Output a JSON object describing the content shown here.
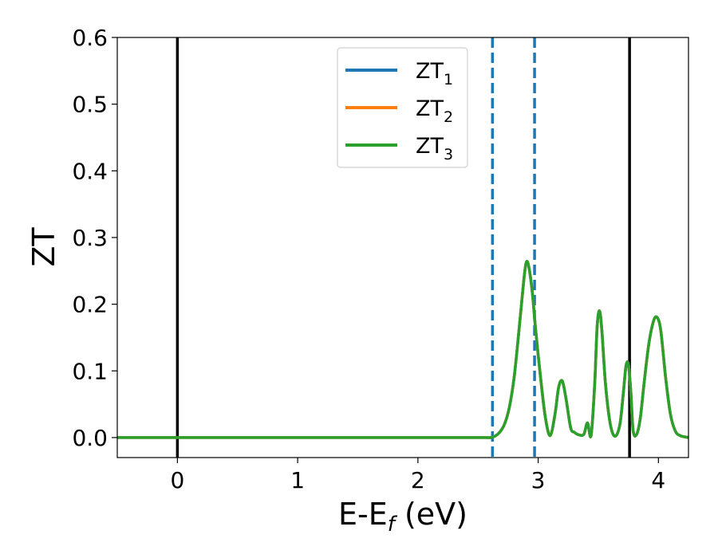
{
  "chart_data": {
    "type": "line",
    "xlabel": {
      "main": "E-E",
      "sub": "f",
      "tail": " (eV)"
    },
    "ylabel": "ZT",
    "xlim": [
      -0.5,
      4.25
    ],
    "ylim": [
      -0.03,
      0.6
    ],
    "xticks": [
      0,
      1,
      2,
      3,
      4
    ],
    "xtick_labels": [
      "0",
      "1",
      "2",
      "3",
      "4"
    ],
    "yticks": [
      0.0,
      0.1,
      0.2,
      0.3,
      0.4,
      0.5,
      0.6
    ],
    "ytick_labels": [
      "0.0",
      "0.1",
      "0.2",
      "0.3",
      "0.4",
      "0.5",
      "0.6"
    ],
    "grid": false,
    "legend_position": "top-center",
    "series": [
      {
        "name": "ZT",
        "sub": "1",
        "color": "#1f77b4"
      },
      {
        "name": "ZT",
        "sub": "2",
        "color": "#ff7f0e"
      },
      {
        "name": "ZT",
        "sub": "3",
        "color": "#2ca02c"
      }
    ],
    "curve": {
      "x": [
        -0.5,
        0.0,
        1.0,
        2.0,
        2.55,
        2.6,
        2.64,
        2.68,
        2.72,
        2.76,
        2.8,
        2.84,
        2.88,
        2.9,
        2.92,
        2.95,
        2.98,
        3.02,
        3.06,
        3.1,
        3.14,
        3.17,
        3.2,
        3.23,
        3.27,
        3.3,
        3.34,
        3.38,
        3.41,
        3.44,
        3.47,
        3.49,
        3.51,
        3.53,
        3.56,
        3.6,
        3.64,
        3.68,
        3.71,
        3.73,
        3.75,
        3.77,
        3.79,
        3.82,
        3.85,
        3.88,
        3.92,
        3.96,
        3.99,
        4.02,
        4.06,
        4.1,
        4.14,
        4.18,
        4.25
      ],
      "y": [
        0.0,
        0.0,
        0.0,
        0.0,
        0.0,
        0.0,
        0.002,
        0.008,
        0.02,
        0.045,
        0.09,
        0.16,
        0.235,
        0.262,
        0.258,
        0.22,
        0.16,
        0.09,
        0.03,
        0.003,
        0.035,
        0.075,
        0.085,
        0.06,
        0.015,
        0.008,
        0.004,
        0.005,
        0.022,
        0.003,
        0.08,
        0.165,
        0.19,
        0.16,
        0.08,
        0.02,
        0.002,
        0.02,
        0.07,
        0.107,
        0.11,
        0.07,
        0.01,
        0.005,
        0.03,
        0.08,
        0.14,
        0.175,
        0.18,
        0.16,
        0.09,
        0.035,
        0.01,
        0.003,
        0.0
      ]
    },
    "vlines_solid": [
      0.0,
      3.76
    ],
    "vlines_dashed": [
      2.62,
      2.97
    ]
  }
}
